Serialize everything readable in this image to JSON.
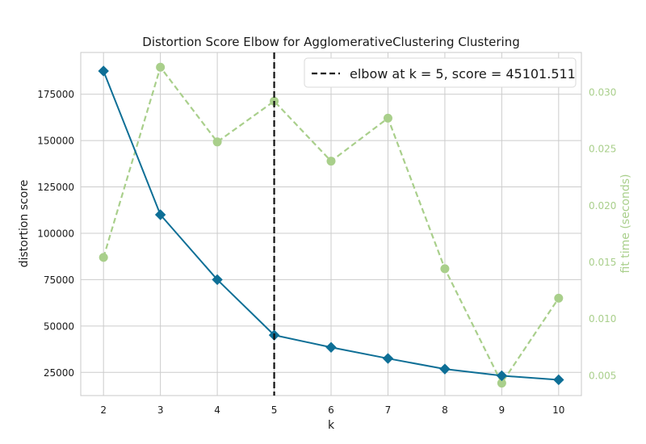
{
  "chart_data": {
    "type": "line",
    "title": "Distortion Score Elbow for AgglomerativeClustering Clustering",
    "xlabel": "k",
    "ylabel": "distortion score",
    "y2label": "fit time (seconds)",
    "x": [
      2,
      3,
      4,
      5,
      6,
      7,
      8,
      9,
      10
    ],
    "xticks": [
      "2",
      "3",
      "4",
      "5",
      "6",
      "7",
      "8",
      "9",
      "10"
    ],
    "xlim": [
      1.6,
      10.4
    ],
    "ylim": [
      12500,
      197500
    ],
    "yticks": [
      25000,
      50000,
      75000,
      100000,
      125000,
      150000,
      175000
    ],
    "ytick_labels": [
      "25000",
      "50000",
      "75000",
      "100000",
      "125000",
      "150000",
      "175000"
    ],
    "y2lim": [
      0.0032,
      0.0335
    ],
    "y2ticks": [
      0.005,
      0.01,
      0.015,
      0.02,
      0.025,
      0.03
    ],
    "y2tick_labels": [
      "0.005",
      "0.010",
      "0.015",
      "0.020",
      "0.025",
      "0.030"
    ],
    "grid": true,
    "legend_position": "top-right",
    "series": [
      {
        "axis": "left",
        "values": [
          187500,
          110000,
          75000,
          45100,
          38500,
          32500,
          26800,
          23200,
          21000
        ],
        "color": "#0e6f96",
        "marker": "diamond",
        "style": "solid"
      },
      {
        "axis": "right",
        "values": [
          0.0154,
          0.0322,
          0.0256,
          0.0292,
          0.0239,
          0.0277,
          0.0144,
          0.0043,
          0.0118
        ],
        "color": "#a9cf8b",
        "marker": "circle",
        "style": "dashed"
      }
    ],
    "elbow": {
      "k": 5,
      "score": "45101.511",
      "legend_label": "elbow at k = 5, score = 45101.511",
      "color": "#111111",
      "style": "dashed"
    }
  }
}
